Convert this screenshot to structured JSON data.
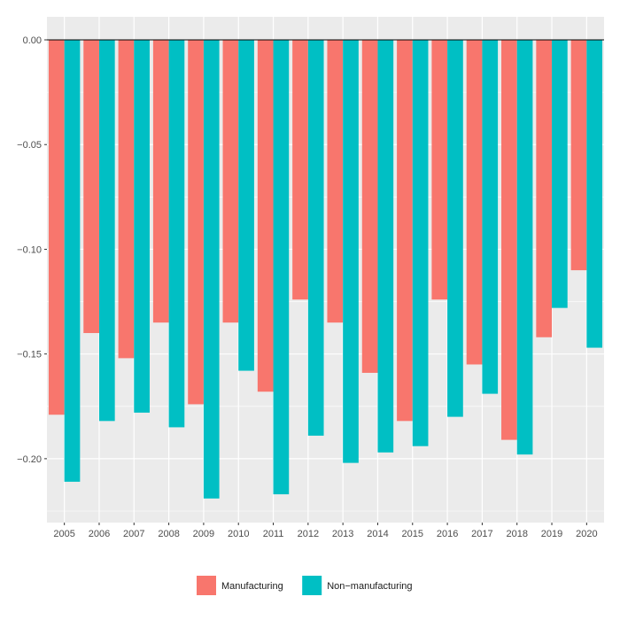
{
  "chart_data": {
    "type": "bar",
    "title": "",
    "xlabel": "",
    "ylabel": "",
    "categories": [
      "2005",
      "2006",
      "2007",
      "2008",
      "2009",
      "2010",
      "2011",
      "2012",
      "2013",
      "2014",
      "2015",
      "2016",
      "2017",
      "2018",
      "2019",
      "2020"
    ],
    "series": [
      {
        "name": "Manufacturing",
        "color": "#F8766D",
        "values": [
          -0.179,
          -0.14,
          -0.152,
          -0.135,
          -0.174,
          -0.135,
          -0.168,
          -0.124,
          -0.135,
          -0.159,
          -0.182,
          -0.124,
          -0.155,
          -0.191,
          -0.142,
          -0.11
        ]
      },
      {
        "name": "Non−manufacturing",
        "color": "#00BFC4",
        "values": [
          -0.211,
          -0.182,
          -0.178,
          -0.185,
          -0.219,
          -0.158,
          -0.217,
          -0.189,
          -0.202,
          -0.197,
          -0.194,
          -0.18,
          -0.169,
          -0.198,
          -0.128,
          -0.147
        ]
      }
    ],
    "yticks": [
      0.0,
      -0.05,
      -0.1,
      -0.15,
      -0.2
    ],
    "ytick_labels": [
      "0.00",
      "−0.05",
      "−0.10",
      "−0.15",
      "−0.20"
    ],
    "ylim": [
      -0.2305,
      0.011
    ],
    "grid": true,
    "zero_line": true,
    "legend_position": "bottom",
    "panel_background": "#EBEBEB",
    "grid_color": "#FFFFFF"
  }
}
